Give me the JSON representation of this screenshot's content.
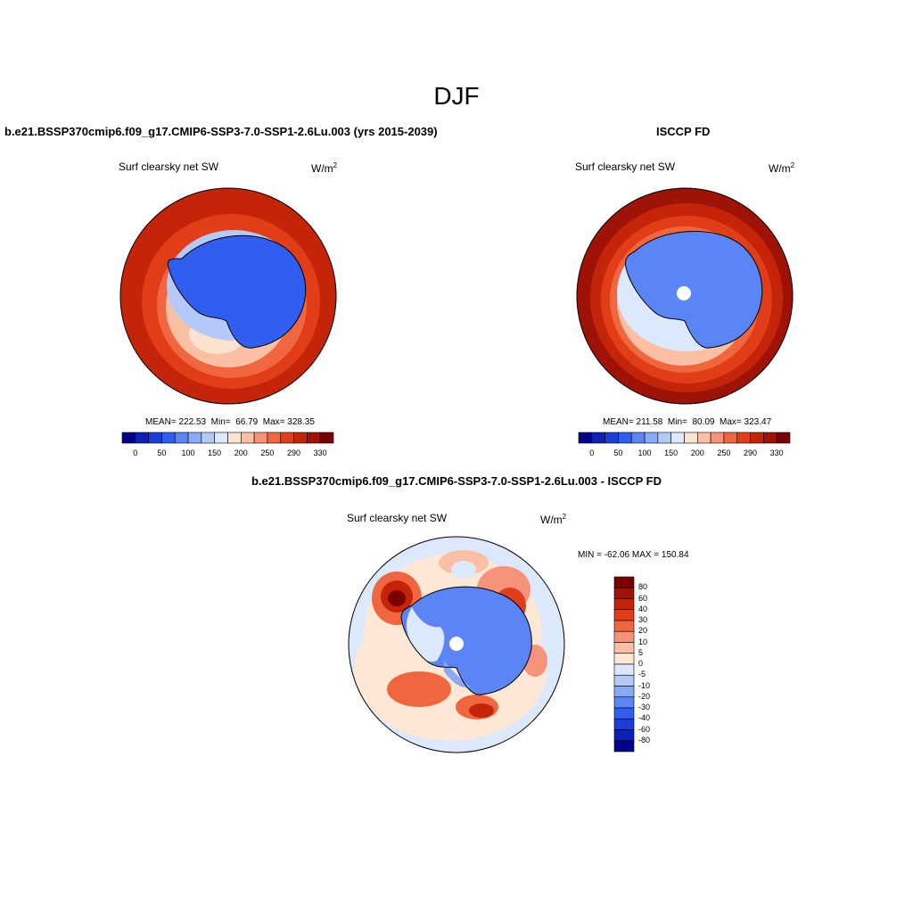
{
  "title": "DJF",
  "panels": [
    {
      "case": "b.e21.BSSP370cmip6.f09_g17.CMIP6-SSP3-7.0-SSP1-2.6Lu.003 (yrs 2015-2039)",
      "variable": "Surf clearsky net SW",
      "units_base": "W/m",
      "units_exp": "2",
      "mean_label": "MEAN=",
      "mean_value": "222.53",
      "min_label": "Min=",
      "min_value": "66.79",
      "max_label": "Max=",
      "max_value": "328.35",
      "colorbar_ticks": [
        "0",
        "50",
        "100",
        "150",
        "200",
        "250",
        "290",
        "330"
      ]
    },
    {
      "case": "ISCCP FD",
      "variable": "Surf clearsky net SW",
      "units_base": "W/m",
      "units_exp": "2",
      "mean_label": "MEAN=",
      "mean_value": "211.58",
      "min_label": "Min=",
      "min_value": "80.09",
      "max_label": "Max=",
      "max_value": "323.47",
      "colorbar_ticks": [
        "0",
        "50",
        "100",
        "150",
        "200",
        "250",
        "290",
        "330"
      ]
    },
    {
      "case": "b.e21.BSSP370cmip6.f09_g17.CMIP6-SSP3-7.0-SSP1-2.6Lu.003 - ISCCP FD",
      "variable": "Surf clearsky net SW",
      "units_base": "W/m",
      "units_exp": "2",
      "minmax": "MIN = -62.06 MAX = 150.84",
      "colorbar_ticks": [
        "80",
        "60",
        "40",
        "30",
        "20",
        "10",
        "5",
        "0",
        "-5",
        "-10",
        "-20",
        "-30",
        "-40",
        "-60",
        "-80"
      ]
    }
  ],
  "colors": {
    "abs_scale": [
      "#00008b",
      "#0b21b8",
      "#1a3fd8",
      "#2f5ef0",
      "#5b84f5",
      "#8aa9f7",
      "#b5c9f9",
      "#dce8fb",
      "#fde3cf",
      "#fbbfa4",
      "#f7937a",
      "#f0673f",
      "#e03d18",
      "#c42407",
      "#9e1306",
      "#7a0000"
    ],
    "diff_scale": [
      "#00008b",
      "#0b21b8",
      "#1a3fd8",
      "#2f5ef0",
      "#5b84f5",
      "#8aa9f7",
      "#b5c9f9",
      "#dce8fb",
      "#fde8d6",
      "#fbbfa4",
      "#f7937a",
      "#f0673f",
      "#e03d18",
      "#c42407",
      "#9e1306",
      "#7a0000"
    ]
  }
}
